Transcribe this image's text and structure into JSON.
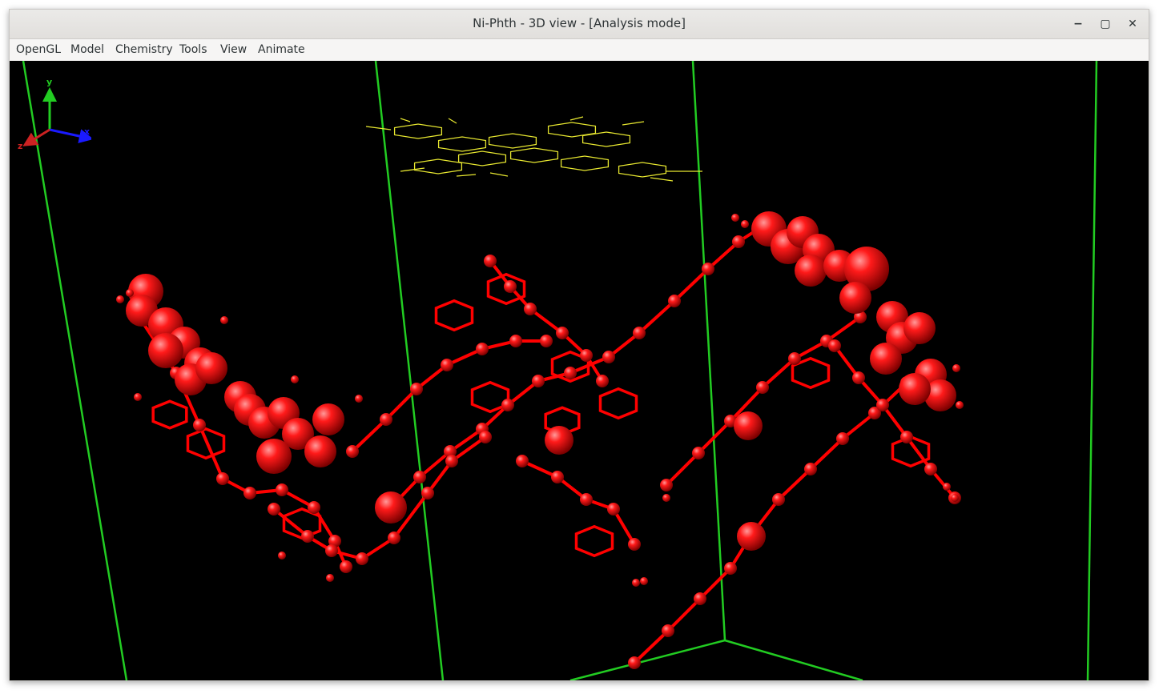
{
  "window": {
    "title": "Ni-Phth - 3D view - [Analysis mode]",
    "controls": {
      "minimize": "−",
      "maximize": "▢",
      "close": "✕"
    }
  },
  "menubar": {
    "items": [
      "OpenGL",
      "Model",
      "Chemistry",
      "Tools",
      "View",
      "Animate"
    ]
  },
  "viewport": {
    "background": "#000000",
    "cell_color": "#22cc22",
    "atom_color": "#ff0000",
    "selection_color": "#e8e830"
  },
  "axes": {
    "x_label": "x",
    "y_label": "y",
    "z_label": "z",
    "x_color": "#1a1aff",
    "y_color": "#22cc22",
    "z_color": "#cc2222"
  }
}
